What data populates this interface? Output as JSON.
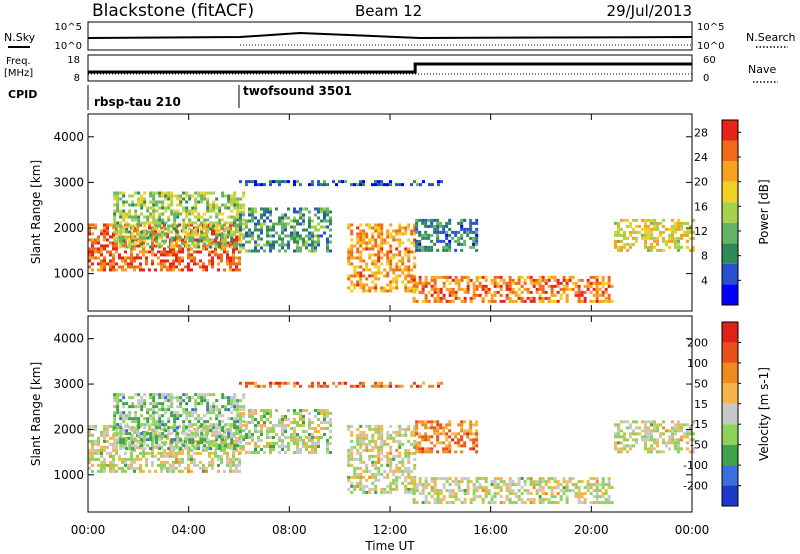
{
  "header": {
    "title": "Blackstone (fitACF)",
    "beam": "Beam 12",
    "date": "29/Jul/2013"
  },
  "top_panels": {
    "nsky_label": "N.Sky",
    "nsky_ticks": [
      "10^5",
      "10^0"
    ],
    "nsearch_label": "N.Search",
    "nsearch_ticks": [
      "10^5",
      "10^0"
    ],
    "freq_label_1": "Freq.",
    "freq_label_2": "[MHz]",
    "freq_ticks": [
      "18",
      "8"
    ],
    "nave_label": "Nave",
    "nave_ticks": [
      "60",
      "0"
    ],
    "cpid_label": "CPID",
    "cpid_programs": [
      {
        "name": "rbsp-tau 210",
        "start_hour": 0
      },
      {
        "name": "twofsound 3501",
        "start_hour": 6
      }
    ]
  },
  "time_axis": {
    "label": "Time UT",
    "ticks": [
      "00:00",
      "04:00",
      "08:00",
      "12:00",
      "16:00",
      "20:00",
      "00:00"
    ]
  },
  "chart_data": [
    {
      "type": "heatmap",
      "name": "power",
      "ylabel": "Slant Range [km]",
      "yticks": [
        "1000",
        "2000",
        "3000",
        "4000"
      ],
      "ylim": [
        180,
        4500
      ],
      "xlim_hours": [
        0,
        24
      ],
      "colorbar": {
        "label": "Power [dB]",
        "ticks": [
          "4",
          "8",
          "12",
          "16",
          "20",
          "24",
          "28"
        ],
        "range": [
          0,
          30
        ],
        "colors": [
          "#0000ff",
          "#2a4fd0",
          "#2e8b57",
          "#66b366",
          "#a6d14a",
          "#f0d020",
          "#f6a21e",
          "#f06a18",
          "#e8231a"
        ]
      },
      "echo_regions": [
        {
          "start_hour": 0.0,
          "end_hour": 6.0,
          "range_start": 1100,
          "range_end": 2100,
          "level": 26
        },
        {
          "start_hour": 1.0,
          "end_hour": 6.2,
          "range_start": 1600,
          "range_end": 2800,
          "level": 14
        },
        {
          "start_hour": 6.0,
          "end_hour": 9.6,
          "range_start": 1500,
          "range_end": 2450,
          "level": 10
        },
        {
          "start_hour": 10.3,
          "end_hour": 13.0,
          "range_start": 600,
          "range_end": 2100,
          "level": 22
        },
        {
          "start_hour": 12.9,
          "end_hour": 20.8,
          "range_start": 400,
          "range_end": 950,
          "level": 24
        },
        {
          "start_hour": 13.0,
          "end_hour": 15.5,
          "range_start": 1500,
          "range_end": 2200,
          "level": 8
        },
        {
          "start_hour": 20.9,
          "end_hour": 24.0,
          "range_start": 1500,
          "range_end": 2200,
          "level": 18
        },
        {
          "start_hour": 6.0,
          "end_hour": 14.0,
          "range_start": 2950,
          "range_end": 3050,
          "level": 6
        }
      ]
    },
    {
      "type": "heatmap",
      "name": "velocity",
      "ylabel": "Slant Range [km]",
      "yticks": [
        "1000",
        "2000",
        "3000",
        "4000"
      ],
      "ylim": [
        180,
        4500
      ],
      "xlim_hours": [
        0,
        24
      ],
      "colorbar": {
        "label": "Velocity [m s-1]",
        "ticks": [
          "200",
          "100",
          "50",
          "15",
          "-15",
          "-50",
          "-100",
          "-200"
        ],
        "range": [
          -250,
          250
        ],
        "colors": [
          "#2038c8",
          "#3c6fd8",
          "#3ea34a",
          "#8fd25a",
          "#c8c8c8",
          "#f4b64a",
          "#f08a1e",
          "#e8501a",
          "#e0201a"
        ]
      },
      "echo_regions": [
        {
          "start_hour": 0.0,
          "end_hour": 6.0,
          "range_start": 1100,
          "range_end": 2100,
          "level": 0
        },
        {
          "start_hour": 1.0,
          "end_hour": 6.2,
          "range_start": 1600,
          "range_end": 2800,
          "level": -60
        },
        {
          "start_hour": 6.0,
          "end_hour": 9.6,
          "range_start": 1500,
          "range_end": 2450,
          "level": -20
        },
        {
          "start_hour": 10.3,
          "end_hour": 13.0,
          "range_start": 600,
          "range_end": 2100,
          "level": 0
        },
        {
          "start_hour": 12.9,
          "end_hour": 20.8,
          "range_start": 400,
          "range_end": 950,
          "level": 0
        },
        {
          "start_hour": 13.0,
          "end_hour": 15.5,
          "range_start": 1500,
          "range_end": 2200,
          "level": 120
        },
        {
          "start_hour": 20.9,
          "end_hour": 24.0,
          "range_start": 1500,
          "range_end": 2200,
          "level": 0
        },
        {
          "start_hour": 6.0,
          "end_hour": 14.0,
          "range_start": 2950,
          "range_end": 3050,
          "level": 150
        }
      ]
    }
  ]
}
